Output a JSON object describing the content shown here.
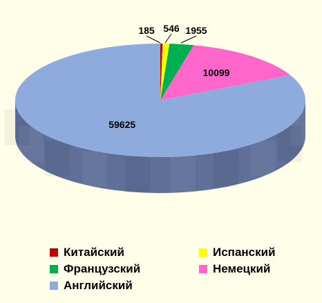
{
  "chart_data": {
    "type": "pie",
    "title": "",
    "labels": [
      "Китайский",
      "Испанский",
      "Французский",
      "Немецкий",
      "Английский"
    ],
    "values": [
      185,
      546,
      1955,
      10099,
      59625
    ],
    "data_labels": [
      "185",
      "546",
      "1955",
      "10099",
      "59625"
    ],
    "colors": [
      "#c00000",
      "#ffff00",
      "#00b050",
      "#ff66cc",
      "#8faadc"
    ],
    "side_colors": [
      "#8a0000",
      "#b5b500",
      "#007a38",
      "#b8479a",
      "#5f6f98"
    ],
    "legend_position": "bottom",
    "style": "3d"
  },
  "legend": [
    {
      "label": "Китайский",
      "color": "#c00000"
    },
    {
      "label": "Испанский",
      "color": "#ffff00"
    },
    {
      "label": "Французский",
      "color": "#00b050"
    },
    {
      "label": "Немецкий",
      "color": "#ff66cc"
    },
    {
      "label": "Английский",
      "color": "#8faadc"
    }
  ]
}
